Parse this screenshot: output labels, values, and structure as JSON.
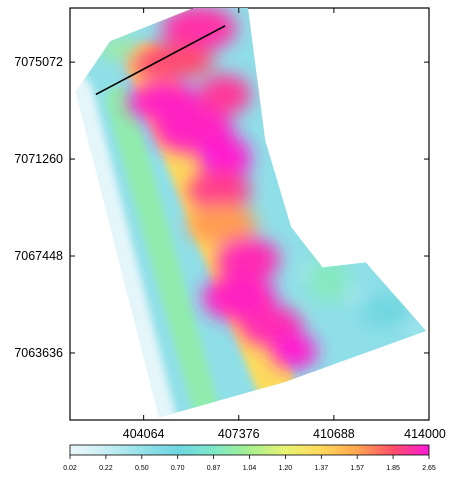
{
  "chart_data": {
    "type": "heatmap",
    "title": "",
    "xlabel": "",
    "ylabel": "",
    "xlim": [
      401500,
      414000
    ],
    "ylim": [
      7061000,
      7077200
    ],
    "x_ticks": [
      "404064",
      "407376",
      "410688",
      "414000"
    ],
    "y_ticks": [
      "7063636",
      "7067448",
      "7071260",
      "7075072"
    ],
    "grid": false,
    "colorbar": {
      "placement": "bottom",
      "ticks": [
        "0.02",
        "0.22",
        "0.50",
        "0.70",
        "0.87",
        "1.04",
        "1.20",
        "1.37",
        "1.57",
        "1.85",
        "2.65"
      ],
      "colors": [
        "#eaf7fb",
        "#c8eef4",
        "#94e1ea",
        "#6fd6e0",
        "#7de8c8",
        "#a6f08f",
        "#e8f374",
        "#ffd85a",
        "#ffa550",
        "#ff4f6a",
        "#ff1ad6"
      ]
    },
    "survey_polygon": [
      [
        402900,
        7075900
      ],
      [
        405800,
        7077200
      ],
      [
        407700,
        7077200
      ],
      [
        408300,
        7072000
      ],
      [
        409200,
        7068600
      ],
      [
        410300,
        7067000
      ],
      [
        411800,
        7067200
      ],
      [
        413900,
        7064500
      ],
      [
        409000,
        7062500
      ],
      [
        404600,
        7061100
      ],
      [
        401700,
        7073900
      ]
    ],
    "profile_line": [
      [
        402400,
        7073800
      ],
      [
        406900,
        7076500
      ]
    ],
    "high_zones": [
      {
        "x": 406000,
        "y": 7076400,
        "v": 2.3,
        "rx": 1300,
        "ry": 900
      },
      {
        "x": 405000,
        "y": 7075100,
        "v": 1.9,
        "rx": 1500,
        "ry": 700
      },
      {
        "x": 404800,
        "y": 7073500,
        "v": 2.5,
        "rx": 1300,
        "ry": 800
      },
      {
        "x": 406900,
        "y": 7073800,
        "v": 2.2,
        "rx": 900,
        "ry": 800
      },
      {
        "x": 405800,
        "y": 7072400,
        "v": 2.5,
        "rx": 1400,
        "ry": 900
      },
      {
        "x": 406900,
        "y": 7071300,
        "v": 2.6,
        "rx": 900,
        "ry": 900
      },
      {
        "x": 406700,
        "y": 7070000,
        "v": 2.1,
        "rx": 1100,
        "ry": 800
      },
      {
        "x": 406800,
        "y": 7068700,
        "v": 1.6,
        "rx": 1200,
        "ry": 800
      },
      {
        "x": 407700,
        "y": 7067300,
        "v": 2.4,
        "rx": 1100,
        "ry": 900
      },
      {
        "x": 407400,
        "y": 7065800,
        "v": 2.5,
        "rx": 1300,
        "ry": 900
      },
      {
        "x": 408500,
        "y": 7064700,
        "v": 2.4,
        "rx": 1100,
        "ry": 800
      },
      {
        "x": 409300,
        "y": 7063700,
        "v": 2.6,
        "rx": 800,
        "ry": 700
      },
      {
        "x": 410500,
        "y": 7066500,
        "v": 0.9,
        "rx": 700,
        "ry": 900
      },
      {
        "x": 412500,
        "y": 7065300,
        "v": 0.7,
        "rx": 900,
        "ry": 700
      },
      {
        "x": 403200,
        "y": 7075600,
        "v": 1.0,
        "rx": 700,
        "ry": 400
      }
    ]
  }
}
